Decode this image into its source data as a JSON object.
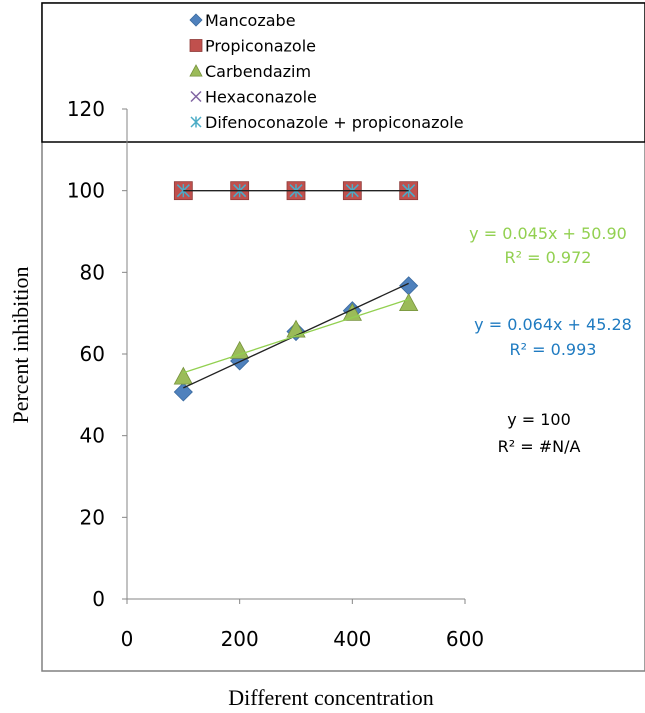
{
  "chart_data": {
    "type": "scatter",
    "xlabel": "Different concentration",
    "ylabel": "Percent inhibition",
    "xlim": [
      0,
      600
    ],
    "ylim": [
      0,
      120
    ],
    "x_ticks": [
      "0",
      "200",
      "400",
      "600"
    ],
    "y_ticks": [
      "0",
      "20",
      "40",
      "60",
      "80",
      "100",
      "120"
    ],
    "legend_position": "top",
    "grid": false,
    "series": [
      {
        "name": "Mancozabe",
        "marker": "diamond",
        "color": "#4F81BD",
        "x": [
          100,
          200,
          300,
          400,
          500
        ],
        "y": [
          50.7,
          58.3,
          65.5,
          70.6,
          76.7
        ]
      },
      {
        "name": "Propiconazole",
        "marker": "square",
        "color": "#C0504D",
        "x": [
          100,
          200,
          300,
          400,
          500
        ],
        "y": [
          100,
          100,
          100,
          100,
          100
        ]
      },
      {
        "name": "Carbendazim",
        "marker": "triangle",
        "color": "#9BBB59",
        "x": [
          100,
          200,
          300,
          400,
          500
        ],
        "y": [
          54.5,
          60.8,
          66.0,
          70.1,
          72.5
        ]
      },
      {
        "name": "Hexaconazole",
        "marker": "x",
        "color": "#8064A2",
        "x": [
          100,
          200,
          300,
          400,
          500
        ],
        "y": [
          100,
          100,
          100,
          100,
          100
        ]
      },
      {
        "name": "Difenoconazole + propiconazole",
        "marker": "asterisk",
        "color": "#4BACC6",
        "x": [
          100,
          200,
          300,
          400,
          500
        ],
        "y": [
          100,
          100,
          100,
          100,
          100
        ]
      }
    ],
    "trendlines": [
      {
        "color": "#222222",
        "x": [
          100,
          500
        ],
        "y": [
          100,
          100
        ]
      },
      {
        "color": "#222222",
        "x": [
          100,
          500
        ],
        "y": [
          51.7,
          77.3
        ]
      },
      {
        "color": "#92D050",
        "x": [
          100,
          500
        ],
        "y": [
          55.4,
          73.4
        ]
      }
    ],
    "annotations": [
      {
        "text1": "y = 0.045x + 50.90",
        "text2": "R² = 0.972",
        "color": "#92D050"
      },
      {
        "text1": "y = 0.064x + 45.28",
        "text2": "R² = 0.993",
        "color": "#1F7BC1"
      },
      {
        "text1": "y = 100",
        "text2": "R² = #N/A",
        "color": "#000000"
      }
    ]
  }
}
